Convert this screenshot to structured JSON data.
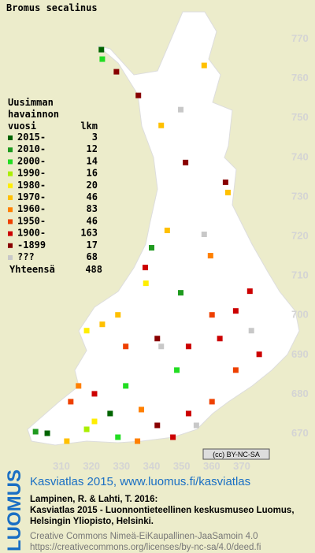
{
  "title": "Bromus secalinus",
  "legend": {
    "heading": [
      "Uusimman",
      "havainnon"
    ],
    "col_year": "vuosi",
    "col_count": "lkm",
    "entries": [
      {
        "label": "2015-",
        "count": 3,
        "color": "#006400"
      },
      {
        "label": "2010-",
        "count": 12,
        "color": "#1f9a1f"
      },
      {
        "label": "2000-",
        "count": 14,
        "color": "#22dd22"
      },
      {
        "label": "1990-",
        "count": 16,
        "color": "#aaee00"
      },
      {
        "label": "1980-",
        "count": 20,
        "color": "#ffee00"
      },
      {
        "label": "1970-",
        "count": 46,
        "color": "#ffc000"
      },
      {
        "label": "1960-",
        "count": 83,
        "color": "#ff8000"
      },
      {
        "label": "1950-",
        "count": 46,
        "color": "#ee4000"
      },
      {
        "label": "1900-",
        "count": 163,
        "color": "#cc0000"
      },
      {
        "label": "-1899",
        "count": 17,
        "color": "#880000"
      },
      {
        "label": "???",
        "count": 68,
        "color": "#c8c8c8"
      }
    ],
    "total_label": "Yhteensä",
    "total": 488
  },
  "xlim": [
    310,
    370
  ],
  "ylim": [
    670,
    770
  ],
  "xticks": [
    310,
    320,
    330,
    340,
    350,
    360,
    370
  ],
  "yticks": [
    670,
    680,
    690,
    700,
    710,
    720,
    730,
    740,
    750,
    760,
    770
  ],
  "squares": [
    [
      323.3,
      767,
      0
    ],
    [
      323.6,
      764.6,
      2
    ],
    [
      328.3,
      761.4,
      9
    ],
    [
      357.5,
      763,
      5
    ],
    [
      335.6,
      755.4,
      9
    ],
    [
      343.2,
      747.8,
      5
    ],
    [
      351.3,
      738.4,
      9
    ],
    [
      364.6,
      733.4,
      9
    ],
    [
      365.4,
      730.8,
      5
    ],
    [
      345.2,
      721.2,
      5
    ],
    [
      340,
      716.8,
      1
    ],
    [
      359.6,
      714.8,
      6
    ],
    [
      337.9,
      711.8,
      8
    ],
    [
      349.7,
      705.4,
      1
    ],
    [
      338.1,
      707.8,
      4
    ],
    [
      372.7,
      705.8,
      8
    ],
    [
      368,
      700.8,
      8
    ],
    [
      360.1,
      699.8,
      7
    ],
    [
      323.6,
      697.4,
      5
    ],
    [
      328.8,
      699.8,
      5
    ],
    [
      318.4,
      695.8,
      4
    ],
    [
      331.4,
      691.8,
      7
    ],
    [
      341.9,
      693.8,
      9
    ],
    [
      352.3,
      691.8,
      8
    ],
    [
      362.7,
      693.8,
      8
    ],
    [
      373.2,
      695.8,
      10
    ],
    [
      348.4,
      685.8,
      2
    ],
    [
      331.4,
      681.8,
      2
    ],
    [
      315.7,
      681.8,
      6
    ],
    [
      313.1,
      677.8,
      7
    ],
    [
      321,
      679.8,
      8
    ],
    [
      336.6,
      675.8,
      6
    ],
    [
      352.3,
      674.8,
      8
    ],
    [
      360.1,
      677.8,
      7
    ],
    [
      368,
      685.8,
      7
    ],
    [
      301.4,
      670.2,
      1
    ],
    [
      305.3,
      669.8,
      0
    ],
    [
      318.4,
      670.8,
      3
    ],
    [
      328.8,
      668.8,
      2
    ],
    [
      341.9,
      671.8,
      9
    ],
    [
      321,
      672.8,
      4
    ],
    [
      311.8,
      667.8,
      5
    ],
    [
      335.3,
      667.8,
      6
    ],
    [
      347.1,
      668.8,
      8
    ],
    [
      354.9,
      671.8,
      10
    ],
    [
      357.5,
      720.2,
      10
    ],
    [
      349.7,
      751.8,
      10
    ],
    [
      343.2,
      691.8,
      10
    ],
    [
      326.2,
      674.8,
      0
    ],
    [
      375.8,
      689.8,
      8
    ]
  ],
  "license": "(cc) BY-NC-SA",
  "footer": {
    "logo": "LUOMUS",
    "link": "Kasviatlas 2015, www.luomus.fi/kasviatlas",
    "citation": [
      "Lampinen, R. & Lahti, T. 2016:",
      "Kasviatlas 2015 - Luonnontieteellinen keskusmuseo Luomus,",
      "Helsingin Yliopisto, Helsinki."
    ],
    "license_text": [
      "Creative Commons Nimeä-EiKaupallinen-JaaSamoin 4.0",
      "https://creativecommons.org/licenses/by-nc-sa/4.0/deed.fi"
    ]
  }
}
